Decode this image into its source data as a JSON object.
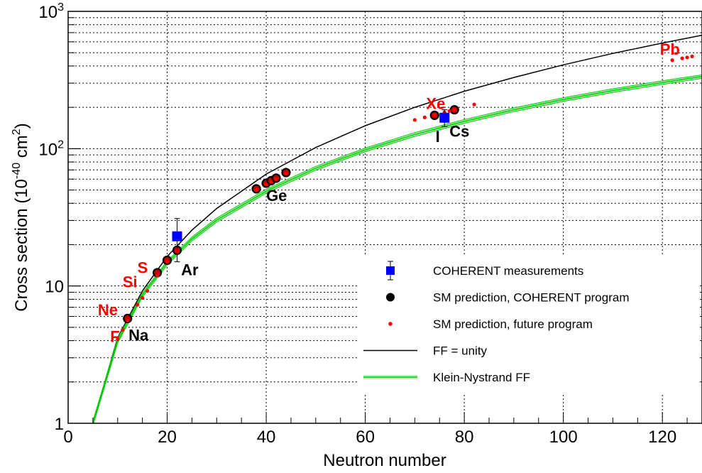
{
  "chart_data": {
    "type": "scatter",
    "title": "",
    "xlabel": "Neutron number",
    "ylabel": {
      "prefix": "Cross section (10",
      "exp": "-40",
      "mid": " cm",
      "exp2": "2",
      "suffix": ")"
    },
    "xlim": [
      0,
      128
    ],
    "ylim": [
      1,
      1000
    ],
    "y_scale": "log",
    "grid": true,
    "x_ticks": [
      {
        "value": 0,
        "label": "0"
      },
      {
        "value": 20,
        "label": "20"
      },
      {
        "value": 40,
        "label": "40"
      },
      {
        "value": 60,
        "label": "60"
      },
      {
        "value": 80,
        "label": "80"
      },
      {
        "value": 100,
        "label": "100"
      },
      {
        "value": 120,
        "label": "120"
      }
    ],
    "y_ticks": [
      {
        "value": 1,
        "label": "1"
      },
      {
        "value": 10,
        "label": "10"
      },
      {
        "value": 100,
        "base": "10",
        "exp": "2"
      },
      {
        "value": 1000,
        "base": "10",
        "exp": "3"
      }
    ],
    "series": [
      {
        "name": "COHERENT measurements",
        "color": "#0000ff",
        "points": [
          {
            "x": 22,
            "y": 23,
            "err_low": 15,
            "err_high": 31
          },
          {
            "x": 76,
            "y": 168,
            "err_low": 145,
            "err_high": 192
          }
        ]
      },
      {
        "name": "SM prediction, COHERENT program",
        "color": "#000000",
        "points": [
          {
            "x": 12,
            "y": 5.8
          },
          {
            "x": 18,
            "y": 12.5
          },
          {
            "x": 20,
            "y": 15.4
          },
          {
            "x": 22,
            "y": 18.2
          },
          {
            "x": 38,
            "y": 51
          },
          {
            "x": 40,
            "y": 56
          },
          {
            "x": 41,
            "y": 58.5
          },
          {
            "x": 42,
            "y": 61
          },
          {
            "x": 44,
            "y": 67
          },
          {
            "x": 74,
            "y": 175
          },
          {
            "x": 78,
            "y": 192
          }
        ]
      },
      {
        "name": "SM prediction, future program",
        "color": "#ff0000",
        "points": [
          {
            "x": 10,
            "y": 4.1
          },
          {
            "x": 11,
            "y": 4.8
          },
          {
            "x": 12,
            "y": 5.6
          },
          {
            "x": 14,
            "y": 7.3
          },
          {
            "x": 15,
            "y": 8.2
          },
          {
            "x": 16,
            "y": 9.2
          },
          {
            "x": 18,
            "y": 11.9
          },
          {
            "x": 20,
            "y": 15.0
          },
          {
            "x": 22,
            "y": 17.8
          },
          {
            "x": 38,
            "y": 50
          },
          {
            "x": 40,
            "y": 55
          },
          {
            "x": 41,
            "y": 57.5
          },
          {
            "x": 42,
            "y": 60
          },
          {
            "x": 44,
            "y": 66
          },
          {
            "x": 70,
            "y": 162
          },
          {
            "x": 72,
            "y": 169
          },
          {
            "x": 74,
            "y": 176
          },
          {
            "x": 76,
            "y": 184
          },
          {
            "x": 77,
            "y": 188
          },
          {
            "x": 78,
            "y": 192
          },
          {
            "x": 82,
            "y": 210
          },
          {
            "x": 122,
            "y": 441
          },
          {
            "x": 124,
            "y": 455
          },
          {
            "x": 125,
            "y": 462
          },
          {
            "x": 126,
            "y": 470
          }
        ]
      },
      {
        "name": "FF = unity",
        "color": "#000000",
        "type": "line",
        "x": [
          5,
          10,
          15,
          20,
          25,
          30,
          40,
          50,
          60,
          70,
          80,
          90,
          100,
          110,
          120,
          128
        ],
        "y": [
          1.0,
          4.2,
          9.2,
          16.4,
          25.5,
          36.7,
          65.3,
          102,
          147,
          200,
          262,
          330,
          408,
          494,
          588,
          670
        ]
      },
      {
        "name": "Klein-Nystrand FF",
        "color": "#00cc00",
        "type": "line",
        "x": [
          5,
          10,
          15,
          20,
          25,
          30,
          40,
          50,
          60,
          70,
          80,
          90,
          100,
          110,
          120,
          128
        ],
        "y": [
          1.0,
          4.0,
          8.6,
          14.7,
          22.0,
          30.2,
          49,
          72,
          98,
          127,
          158,
          192,
          228,
          265,
          303,
          335
        ],
        "band_low": [
          0.96,
          3.85,
          8.3,
          14.2,
          21.3,
          29.2,
          47.4,
          69.7,
          95,
          123,
          153,
          186,
          221,
          257,
          294,
          325
        ],
        "band_high": [
          1.04,
          4.15,
          8.9,
          15.2,
          22.7,
          31.2,
          50.6,
          74.3,
          101,
          131,
          163,
          198,
          235,
          273,
          312,
          345
        ]
      }
    ],
    "annotations": [
      {
        "text": "F",
        "x": 8.5,
        "y": 3.9,
        "color": "#ff0000"
      },
      {
        "text": "Ne",
        "x": 6,
        "y": 6.1,
        "color": "#ff0000"
      },
      {
        "text": "Na",
        "x": 12.2,
        "y": 4.0,
        "color": "#000000"
      },
      {
        "text": "Si",
        "x": 11,
        "y": 9.8,
        "color": "#ff0000"
      },
      {
        "text": "S",
        "x": 14,
        "y": 12.4,
        "color": "#ff0000"
      },
      {
        "text": "Ar",
        "x": 22.8,
        "y": 12.0,
        "color": "#000000"
      },
      {
        "text": "Ge",
        "x": 40,
        "y": 41.5,
        "color": "#000000"
      },
      {
        "text": "Xe",
        "x": 72.3,
        "y": 194,
        "color": "#ff0000"
      },
      {
        "text": "I",
        "x": 74.2,
        "y": 112,
        "color": "#000000"
      },
      {
        "text": "Cs",
        "x": 77,
        "y": 122,
        "color": "#000000"
      },
      {
        "text": "Pb",
        "x": 119.5,
        "y": 484,
        "color": "#ff0000"
      }
    ],
    "legend": {
      "position": "lower-right",
      "entries": [
        {
          "label": "COHERENT measurements",
          "marker": "square-errorbar",
          "color": "#0000ff"
        },
        {
          "label": "SM prediction, COHERENT program",
          "marker": "circle",
          "color": "#000000"
        },
        {
          "label": "SM prediction, future program",
          "marker": "dot",
          "color": "#ff0000"
        },
        {
          "label": "FF = unity",
          "marker": "line",
          "color": "#000000"
        },
        {
          "label": "Klein-Nystrand FF",
          "marker": "band-line",
          "color": "#00cc00"
        }
      ]
    }
  }
}
